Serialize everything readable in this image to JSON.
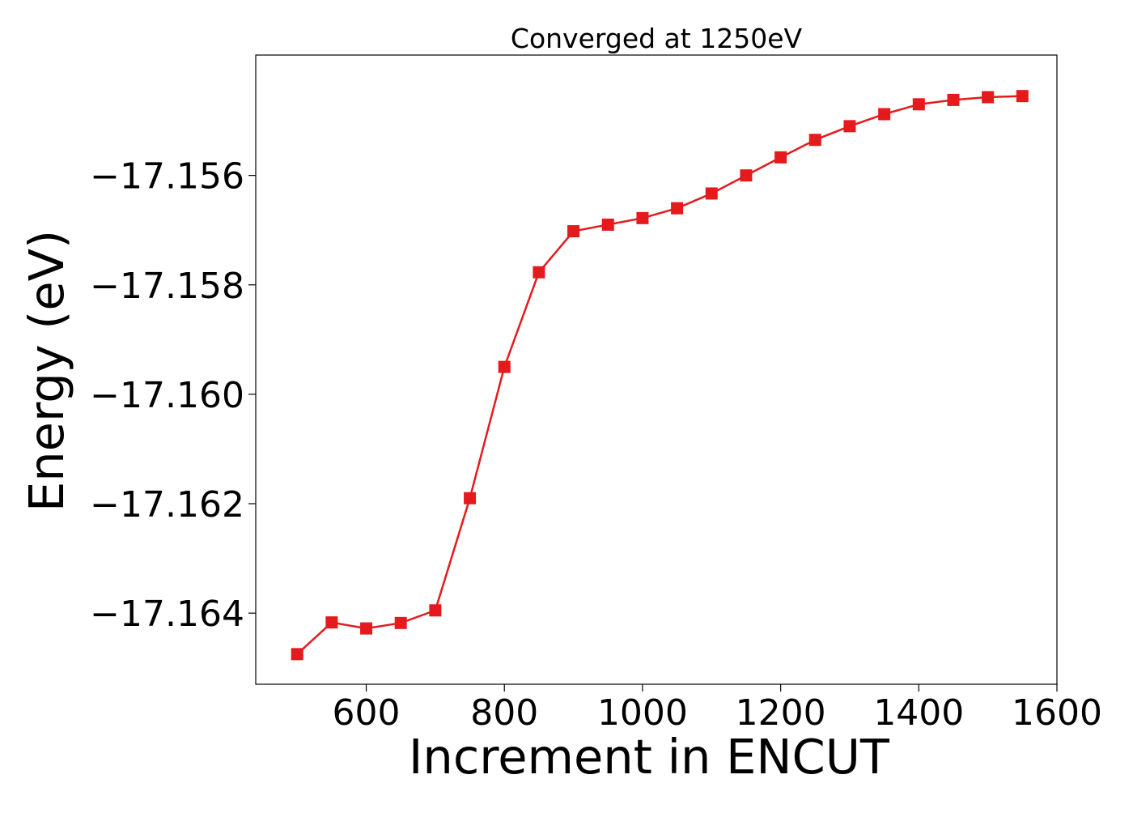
{
  "chart_data": {
    "type": "line",
    "title": "Converged at 1250eV",
    "xlabel": "Increment in ENCUT",
    "ylabel": "Energy (eV)",
    "xlim": [
      440,
      1600
    ],
    "ylim": [
      -17.1653,
      -17.1538
    ],
    "x_ticks": [
      600,
      800,
      1000,
      1200,
      1400,
      1600
    ],
    "y_ticks": [
      -17.164,
      -17.162,
      -17.16,
      -17.158,
      -17.156
    ],
    "y_tick_labels": [
      "−17.164",
      "−17.162",
      "−17.160",
      "−17.158",
      "−17.156"
    ],
    "grid": false,
    "legend": "none",
    "series": [
      {
        "color": "#e41a1c",
        "marker": "square",
        "x": [
          500,
          550,
          600,
          650,
          700,
          750,
          800,
          850,
          900,
          950,
          1000,
          1050,
          1100,
          1150,
          1200,
          1250,
          1300,
          1350,
          1400,
          1450,
          1500,
          1550
        ],
        "y": [
          -17.16475,
          -17.16417,
          -17.16428,
          -17.16418,
          -17.16395,
          -17.1619,
          -17.1595,
          -17.15777,
          -17.15702,
          -17.1569,
          -17.15678,
          -17.1566,
          -17.15633,
          -17.156,
          -17.15567,
          -17.15535,
          -17.1551,
          -17.15488,
          -17.1547,
          -17.15462,
          -17.15457,
          -17.15455
        ]
      }
    ]
  }
}
